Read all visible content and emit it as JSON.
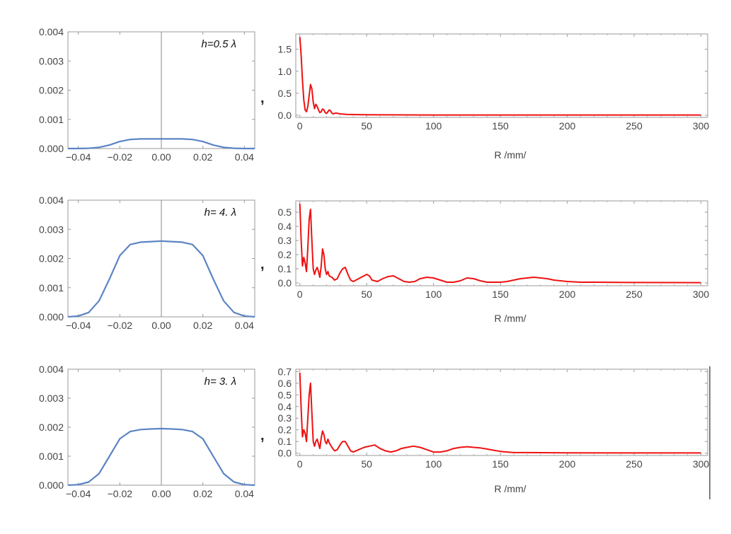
{
  "chart_data": [
    {
      "type": "line",
      "panel": "left-1",
      "annotation": "h=0.5 λ",
      "xlim": [
        -0.045,
        0.045
      ],
      "ylim": [
        0,
        0.004
      ],
      "x_ticks": [
        "−0.04",
        "−0.02",
        "0.00",
        "0.02",
        "0.04"
      ],
      "x_tick_values": [
        -0.04,
        -0.02,
        0.0,
        0.02,
        0.04
      ],
      "y_ticks": [
        "0.004",
        "0.003",
        "0.002",
        "0.001",
        "0.000"
      ],
      "y_tick_values": [
        0.004,
        0.003,
        0.002,
        0.001,
        0.0
      ],
      "line_color": "#5b84c4",
      "series": [
        {
          "x": [
            -0.045,
            -0.04,
            -0.035,
            -0.03,
            -0.025,
            -0.02,
            -0.015,
            -0.01,
            -0.005,
            0,
            0.005,
            0.01,
            0.015,
            0.02,
            0.025,
            0.03,
            0.035,
            0.04,
            0.045
          ],
          "values": [
            0,
            0,
            1e-05,
            4e-05,
            0.00012,
            0.00024,
            0.00031,
            0.00033,
            0.00033,
            0.00033,
            0.00033,
            0.00033,
            0.00031,
            0.00024,
            0.00012,
            4e-05,
            1e-05,
            0,
            0
          ]
        }
      ]
    },
    {
      "type": "line",
      "panel": "right-1",
      "xlabel": "R /mm/",
      "xlim": [
        -3,
        305
      ],
      "ylim": [
        -0.05,
        1.85
      ],
      "x_ticks": [
        "0",
        "50",
        "100",
        "150",
        "200",
        "250",
        "300"
      ],
      "x_tick_values": [
        0,
        50,
        100,
        150,
        200,
        250,
        300
      ],
      "y_ticks": [
        "1.5",
        "1.0",
        "0.5",
        "0.0"
      ],
      "y_tick_values": [
        1.5,
        1.0,
        0.5,
        0.0
      ],
      "line_color": "#ee1111",
      "series": [
        {
          "x": [
            0,
            1,
            2,
            3,
            4,
            5,
            6,
            7,
            8,
            9,
            10,
            11,
            12,
            13,
            14,
            15,
            16,
            17,
            18,
            19,
            20,
            21,
            22,
            23,
            24,
            25,
            27,
            30,
            35,
            40,
            50,
            100,
            200,
            300
          ],
          "values": [
            1.78,
            1.35,
            0.8,
            0.35,
            0.12,
            0.08,
            0.2,
            0.45,
            0.7,
            0.6,
            0.3,
            0.15,
            0.25,
            0.2,
            0.12,
            0.06,
            0.08,
            0.14,
            0.12,
            0.06,
            0.04,
            0.08,
            0.12,
            0.1,
            0.05,
            0.03,
            0.05,
            0.03,
            0.02,
            0.015,
            0.01,
            0.005,
            0.005,
            0.005
          ]
        }
      ]
    },
    {
      "type": "line",
      "panel": "left-2",
      "annotation": "h= 4. λ",
      "xlim": [
        -0.045,
        0.045
      ],
      "ylim": [
        0,
        0.004
      ],
      "x_ticks": [
        "−0.04",
        "−0.02",
        "0.00",
        "0.02",
        "0.04"
      ],
      "x_tick_values": [
        -0.04,
        -0.02,
        0.0,
        0.02,
        0.04
      ],
      "y_ticks": [
        "0.004",
        "0.003",
        "0.002",
        "0.001",
        "0.000"
      ],
      "y_tick_values": [
        0.004,
        0.003,
        0.002,
        0.001,
        0.0
      ],
      "line_color": "#5b84c4",
      "series": [
        {
          "x": [
            -0.045,
            -0.04,
            -0.035,
            -0.03,
            -0.025,
            -0.02,
            -0.015,
            -0.01,
            -0.005,
            0,
            0.005,
            0.01,
            0.015,
            0.02,
            0.025,
            0.03,
            0.035,
            0.04,
            0.045
          ],
          "values": [
            0,
            3e-05,
            0.00015,
            0.00055,
            0.0013,
            0.0021,
            0.00248,
            0.00256,
            0.00258,
            0.0026,
            0.00258,
            0.00256,
            0.00248,
            0.0021,
            0.0013,
            0.00055,
            0.00015,
            3e-05,
            0
          ]
        }
      ]
    },
    {
      "type": "line",
      "panel": "right-2",
      "xlabel": "R /mm/",
      "xlim": [
        -3,
        305
      ],
      "ylim": [
        -0.02,
        0.58
      ],
      "x_ticks": [
        "0",
        "50",
        "100",
        "150",
        "200",
        "250",
        "300"
      ],
      "x_tick_values": [
        0,
        50,
        100,
        150,
        200,
        250,
        300
      ],
      "y_ticks": [
        "0.5",
        "0.4",
        "0.3",
        "0.2",
        "0.1",
        "0.0"
      ],
      "y_tick_values": [
        0.5,
        0.4,
        0.3,
        0.2,
        0.1,
        0.0
      ],
      "line_color": "#ee1111",
      "series": [
        {
          "x": [
            0,
            1,
            2,
            3,
            4,
            5,
            6,
            7,
            8,
            9,
            10,
            11,
            12,
            13,
            14,
            15,
            16,
            17,
            18,
            19,
            20,
            21,
            22,
            24,
            26,
            28,
            30,
            32,
            34,
            36,
            38,
            40,
            42,
            46,
            50,
            52,
            54,
            58,
            62,
            66,
            70,
            74,
            78,
            82,
            86,
            90,
            95,
            100,
            105,
            110,
            115,
            120,
            125,
            130,
            135,
            140,
            145,
            150,
            155,
            160,
            165,
            170,
            175,
            180,
            185,
            190,
            195,
            200,
            210,
            220,
            250,
            300
          ],
          "values": [
            0.56,
            0.3,
            0.12,
            0.18,
            0.14,
            0.08,
            0.25,
            0.45,
            0.52,
            0.3,
            0.1,
            0.06,
            0.09,
            0.11,
            0.08,
            0.04,
            0.12,
            0.24,
            0.2,
            0.1,
            0.06,
            0.08,
            0.05,
            0.04,
            0.02,
            0.03,
            0.07,
            0.1,
            0.11,
            0.06,
            0.02,
            0.01,
            0.02,
            0.04,
            0.06,
            0.05,
            0.02,
            0.01,
            0.03,
            0.045,
            0.05,
            0.03,
            0.01,
            0.005,
            0.01,
            0.03,
            0.04,
            0.035,
            0.02,
            0.005,
            0.005,
            0.015,
            0.035,
            0.03,
            0.015,
            0.005,
            0.005,
            0.005,
            0.01,
            0.02,
            0.03,
            0.035,
            0.04,
            0.035,
            0.03,
            0.02,
            0.015,
            0.01,
            0.005,
            0.005,
            0.003,
            0.002
          ]
        }
      ]
    },
    {
      "type": "line",
      "panel": "left-3",
      "annotation": "h= 3. λ",
      "xlim": [
        -0.045,
        0.045
      ],
      "ylim": [
        0,
        0.004
      ],
      "x_ticks": [
        "−0.04",
        "−0.02",
        "0.00",
        "0.02",
        "0.04"
      ],
      "x_tick_values": [
        -0.04,
        -0.02,
        0.0,
        0.02,
        0.04
      ],
      "y_ticks": [
        "0.004",
        "0.003",
        "0.002",
        "0.001",
        "0.000"
      ],
      "y_tick_values": [
        0.004,
        0.003,
        0.002,
        0.001,
        0.0
      ],
      "line_color": "#5b84c4",
      "series": [
        {
          "x": [
            -0.045,
            -0.04,
            -0.035,
            -0.03,
            -0.025,
            -0.02,
            -0.015,
            -0.01,
            -0.005,
            0,
            0.005,
            0.01,
            0.015,
            0.02,
            0.025,
            0.03,
            0.035,
            0.04,
            0.045
          ],
          "values": [
            0,
            2e-05,
            0.00011,
            0.0004,
            0.001,
            0.0016,
            0.00185,
            0.00192,
            0.00194,
            0.00195,
            0.00194,
            0.00192,
            0.00185,
            0.0016,
            0.001,
            0.0004,
            0.00011,
            2e-05,
            0
          ]
        }
      ]
    },
    {
      "type": "line",
      "panel": "right-3",
      "xlabel": "R /mm/",
      "xlim": [
        -3,
        305
      ],
      "ylim": [
        -0.02,
        0.72
      ],
      "x_ticks": [
        "0",
        "50",
        "100",
        "150",
        "200",
        "250",
        "300"
      ],
      "x_tick_values": [
        0,
        50,
        100,
        150,
        200,
        250,
        300
      ],
      "y_ticks": [
        "0.7",
        "0.6",
        "0.5",
        "0.4",
        "0.3",
        "0.2",
        "0.1",
        "0.0"
      ],
      "y_tick_values": [
        0.7,
        0.6,
        0.5,
        0.4,
        0.3,
        0.2,
        0.1,
        0.0
      ],
      "line_color": "#ee1111",
      "series": [
        {
          "x": [
            0,
            1,
            2,
            3,
            4,
            5,
            6,
            7,
            8,
            9,
            10,
            11,
            12,
            13,
            14,
            15,
            16,
            17,
            18,
            19,
            20,
            21,
            22,
            24,
            26,
            28,
            30,
            32,
            34,
            36,
            38,
            40,
            44,
            48,
            52,
            56,
            60,
            64,
            68,
            72,
            76,
            80,
            85,
            90,
            95,
            100,
            105,
            110,
            115,
            120,
            125,
            130,
            135,
            140,
            145,
            150,
            155,
            160,
            170,
            200,
            250,
            300
          ],
          "values": [
            0.69,
            0.38,
            0.14,
            0.2,
            0.17,
            0.1,
            0.3,
            0.5,
            0.6,
            0.35,
            0.1,
            0.06,
            0.1,
            0.12,
            0.08,
            0.04,
            0.13,
            0.19,
            0.16,
            0.1,
            0.08,
            0.12,
            0.09,
            0.05,
            0.02,
            0.03,
            0.07,
            0.1,
            0.1,
            0.06,
            0.02,
            0.01,
            0.03,
            0.05,
            0.06,
            0.07,
            0.04,
            0.02,
            0.01,
            0.02,
            0.04,
            0.05,
            0.06,
            0.05,
            0.03,
            0.01,
            0.01,
            0.02,
            0.04,
            0.05,
            0.055,
            0.05,
            0.045,
            0.035,
            0.025,
            0.015,
            0.01,
            0.005,
            0.005,
            0.003,
            0.002,
            0.002
          ]
        }
      ]
    }
  ]
}
